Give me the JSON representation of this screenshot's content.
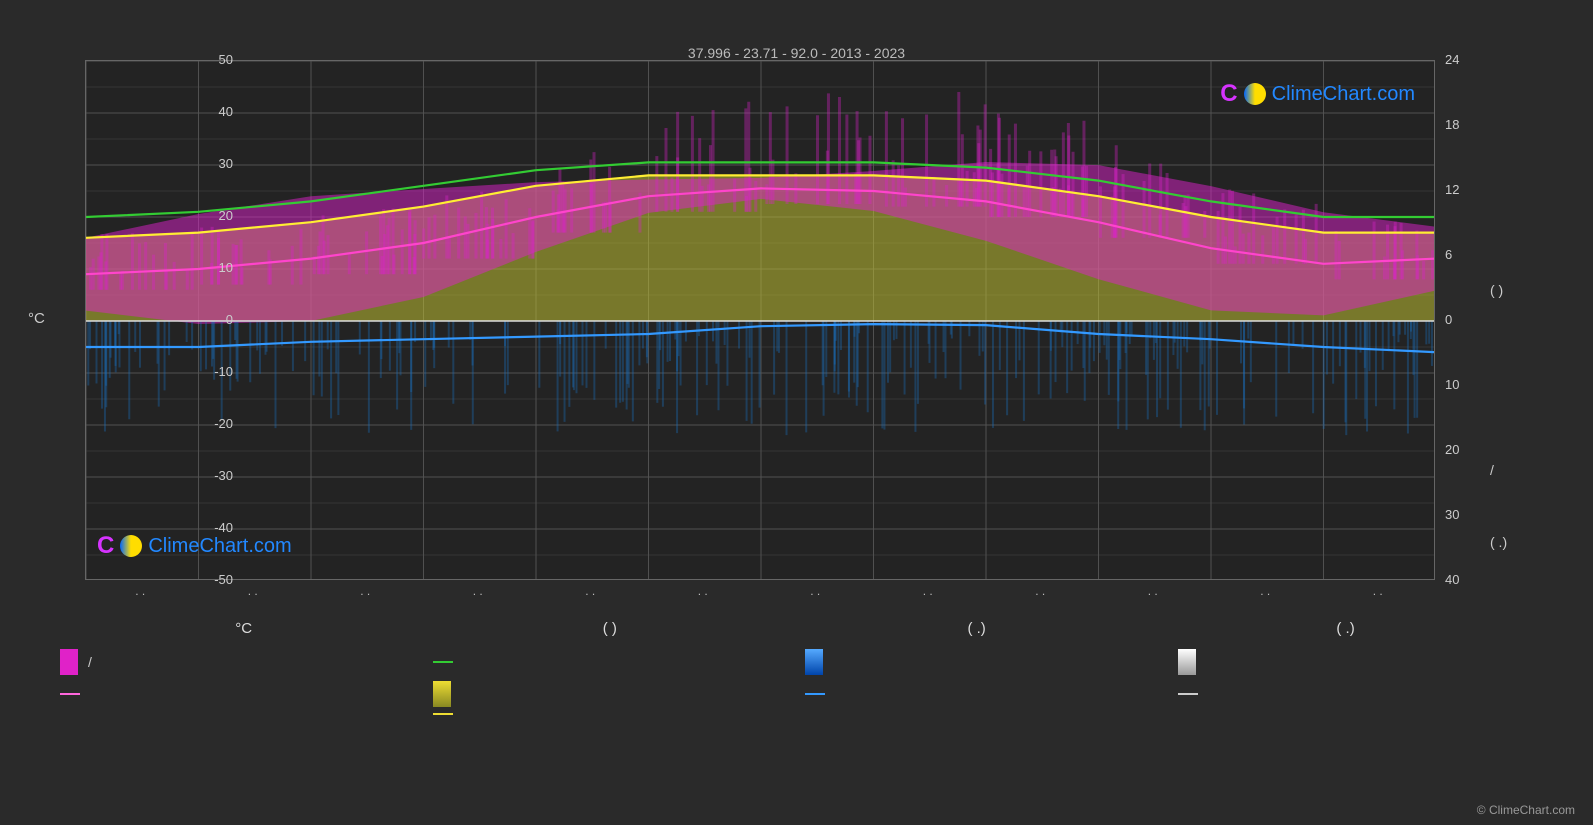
{
  "subtitle": "37.996 -        23.71 -          92.0 -        2013 - 2023",
  "watermark_text": "ClimeChart.com",
  "copyright": "© ClimeChart.com",
  "chart": {
    "type": "climate-combo",
    "plot_bg": "#1e1e1e",
    "grid_color": "#555555",
    "border_color": "#888888",
    "y_left": {
      "label": "°C",
      "min": -50,
      "max": 50,
      "step": 10,
      "ticks": [
        50,
        40,
        30,
        20,
        10,
        0,
        -10,
        -20,
        -30,
        -40,
        -50
      ]
    },
    "y_right_top": {
      "min": 0,
      "max": 24,
      "step": 6,
      "ticks": [
        24,
        18,
        12,
        6,
        0
      ]
    },
    "y_right_bottom": {
      "min": 0,
      "max": 40,
      "step": 10,
      "ticks": [
        10,
        20,
        30,
        40
      ]
    },
    "months": 12,
    "series": {
      "green_line": {
        "label": "",
        "color": "#33cc33",
        "values": [
          20,
          21,
          23,
          26,
          29,
          30.5,
          30.5,
          30.5,
          29.5,
          27,
          23,
          20,
          20
        ]
      },
      "yellow_line": {
        "label": "",
        "color": "#ffee33",
        "values": [
          16,
          17,
          19,
          22,
          26,
          28,
          28,
          28,
          27,
          24,
          20,
          17,
          17
        ]
      },
      "magenta_line": {
        "label": "",
        "color": "#ff44cc",
        "values": [
          9,
          10,
          12,
          15,
          20,
          24,
          25.5,
          25,
          23,
          19,
          14,
          11,
          12
        ]
      },
      "blue_line": {
        "label": "",
        "color": "#3399ff",
        "values": [
          -5,
          -5,
          -4,
          -3.5,
          -3,
          -2.5,
          -1,
          -0.6,
          -0.8,
          -2.5,
          -3.5,
          -5,
          -6
        ]
      },
      "yellow_fill": {
        "color": "#bfbf33",
        "opacity": 0.55,
        "top_ref": "yellow_line",
        "bottom": 0
      },
      "magenta_fill": {
        "color": "#dd22cc",
        "opacity": 0.5
      },
      "blue_fill": {
        "color": "#1a70c0",
        "opacity": 0.4
      }
    }
  },
  "legend": {
    "headers": [
      "°C",
      "(         )",
      "(   .)",
      "(   .)"
    ],
    "rows": [
      [
        {
          "swatch_type": "box",
          "color": "#e022c8",
          "label": "/"
        },
        {
          "swatch_type": "line",
          "color": "#33cc33",
          "label": ""
        },
        {
          "swatch_type": "box",
          "gradient": [
            "#55aaff",
            "#0044aa"
          ],
          "label": ""
        },
        {
          "swatch_type": "box",
          "gradient": [
            "#ffffff",
            "#999999"
          ],
          "label": ""
        }
      ],
      [
        {
          "swatch_type": "line",
          "color": "#ff66dd",
          "label": ""
        },
        {
          "swatch_type": "box",
          "gradient": [
            "#eedd33",
            "#888822"
          ],
          "label": ""
        },
        {
          "swatch_type": "line",
          "color": "#3399ff",
          "label": ""
        },
        {
          "swatch_type": "line",
          "color": "#cccccc",
          "label": ""
        }
      ],
      [
        {
          "swatch_type": "none",
          "label": ""
        },
        {
          "swatch_type": "line",
          "color": "#eedd33",
          "label": ""
        },
        {
          "swatch_type": "none",
          "label": ""
        },
        {
          "swatch_type": "none",
          "label": ""
        }
      ]
    ]
  }
}
